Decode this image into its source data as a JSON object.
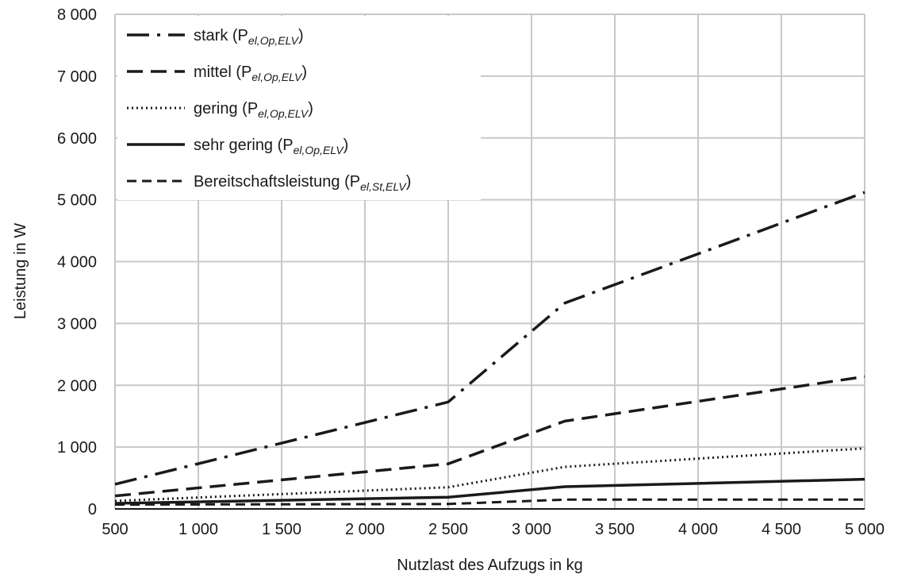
{
  "chart_data": {
    "type": "line",
    "x": [
      500,
      2500,
      3200,
      5000
    ],
    "xlabel": "Nutzlast des Aufzugs in kg",
    "ylabel": "Leistung in W",
    "xlim": [
      500,
      5000
    ],
    "ylim": [
      0,
      8000
    ],
    "x_ticks": [
      500,
      1000,
      1500,
      2000,
      2500,
      3000,
      3500,
      4000,
      4500,
      5000
    ],
    "y_ticks": [
      0,
      1000,
      2000,
      3000,
      4000,
      5000,
      6000,
      7000,
      8000
    ],
    "x_tick_labels": [
      "500",
      "1 000",
      "1 500",
      "2 000",
      "2 500",
      "3 000",
      "3 500",
      "4 000",
      "4 500",
      "5 000"
    ],
    "y_tick_labels": [
      "0",
      "1 000",
      "2 000",
      "3 000",
      "4 000",
      "5 000",
      "6 000",
      "7 000",
      "8 000"
    ],
    "grid": true,
    "legend_position": "top-left",
    "series": [
      {
        "name": "stark (P",
        "name_sub": "el,Op,ELV",
        "name_end": ")",
        "line_style": "dash-dot",
        "values": [
          400,
          1730,
          3330,
          5120
        ]
      },
      {
        "name": "mittel (P",
        "name_sub": "el,Op,ELV",
        "name_end": ")",
        "line_style": "dashed",
        "values": [
          210,
          730,
          1420,
          2140
        ]
      },
      {
        "name": "gering (P",
        "name_sub": "el,Op,ELV",
        "name_end": ")",
        "line_style": "dotted",
        "values": [
          130,
          350,
          680,
          980
        ]
      },
      {
        "name": "sehr gering (P",
        "name_sub": "el,Op,ELV",
        "name_end": ")",
        "line_style": "solid",
        "values": [
          90,
          190,
          360,
          480
        ]
      },
      {
        "name": "Bereitschaftsleistung (P",
        "name_sub": "el,St,ELV",
        "name_end": ")",
        "line_style": "short-dashed",
        "values": [
          70,
          80,
          150,
          150
        ]
      }
    ]
  }
}
